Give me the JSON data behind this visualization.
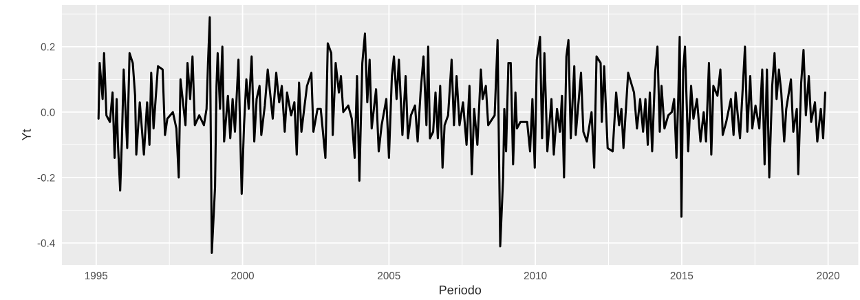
{
  "chart_data": {
    "type": "line",
    "xlabel": "Periodo",
    "ylabel": "Yt",
    "xlim": [
      1993.83,
      2021.03
    ],
    "ylim": [
      -0.467,
      0.328
    ],
    "xticks": [
      1995,
      2000,
      2005,
      2010,
      2015,
      2020,
      {
        "value": 1997.5,
        "label": null
      },
      {
        "value": 2002.5,
        "label": null
      },
      {
        "value": 2007.5,
        "label": null
      },
      {
        "value": 2012.5,
        "label": null
      },
      {
        "value": 2017.5,
        "label": null
      }
    ],
    "yticks": [
      {
        "value": -0.4,
        "label": "-0.4"
      },
      {
        "value": -0.2,
        "label": "-0.2"
      },
      {
        "value": 0.0,
        "label": "0.0"
      },
      {
        "value": 0.2,
        "label": "0.2"
      },
      {
        "value": -0.3,
        "label": null
      },
      {
        "value": -0.1,
        "label": null
      },
      {
        "value": 0.1,
        "label": null
      },
      {
        "value": 0.3,
        "label": null
      }
    ],
    "grid": true,
    "legend": false,
    "series": [
      {
        "color": "#000000",
        "x": [
          1995.08,
          1995.12,
          1995.22,
          1995.27,
          1995.35,
          1995.47,
          1995.56,
          1995.63,
          1995.7,
          1995.74,
          1995.82,
          1995.88,
          1995.94,
          1996.06,
          1996.14,
          1996.25,
          1996.33,
          1996.37,
          1996.49,
          1996.63,
          1996.74,
          1996.82,
          1996.88,
          1996.96,
          1997.11,
          1997.27,
          1997.35,
          1997.43,
          1997.62,
          1997.74,
          1997.82,
          1997.88,
          1998.05,
          1998.12,
          1998.21,
          1998.29,
          1998.37,
          1998.52,
          1998.68,
          1998.77,
          1998.82,
          1998.88,
          1998.95,
          1999.06,
          1999.11,
          1999.15,
          1999.23,
          1999.31,
          1999.37,
          1999.5,
          1999.58,
          1999.66,
          1999.74,
          1999.86,
          1999.97,
          2000.05,
          2000.13,
          2000.21,
          2000.31,
          2000.4,
          2000.48,
          2000.58,
          2000.64,
          2000.76,
          2000.86,
          2001.03,
          2001.15,
          2001.25,
          2001.34,
          2001.44,
          2001.52,
          2001.66,
          2001.77,
          2001.85,
          2001.93,
          2002.01,
          2002.2,
          2002.35,
          2002.42,
          2002.56,
          2002.67,
          2002.83,
          2002.91,
          2003.03,
          2003.08,
          2003.18,
          2003.29,
          2003.36,
          2003.44,
          2003.61,
          2003.73,
          2003.83,
          2003.91,
          2003.99,
          2004.09,
          2004.18,
          2004.26,
          2004.34,
          2004.41,
          2004.56,
          2004.65,
          2004.75,
          2004.91,
          2005.0,
          2005.1,
          2005.17,
          2005.26,
          2005.34,
          2005.46,
          2005.57,
          2005.65,
          2005.75,
          2005.89,
          2005.98,
          2006.08,
          2006.18,
          2006.28,
          2006.34,
          2006.4,
          2006.51,
          2006.59,
          2006.67,
          2006.75,
          2006.83,
          2006.9,
          2007.02,
          2007.14,
          2007.22,
          2007.31,
          2007.41,
          2007.53,
          2007.65,
          2007.75,
          2007.83,
          2007.91,
          2008.02,
          2008.14,
          2008.2,
          2008.31,
          2008.39,
          2008.61,
          2008.71,
          2008.8,
          2008.9,
          2008.94,
          2009.0,
          2009.08,
          2009.16,
          2009.24,
          2009.32,
          2009.37,
          2009.49,
          2009.72,
          2009.82,
          2009.9,
          2009.98,
          2010.05,
          2010.16,
          2010.23,
          2010.31,
          2010.41,
          2010.55,
          2010.63,
          2010.74,
          2010.84,
          2010.91,
          2010.98,
          2011.06,
          2011.13,
          2011.21,
          2011.33,
          2011.38,
          2011.56,
          2011.64,
          2011.76,
          2011.92,
          2012.01,
          2012.09,
          2012.23,
          2012.27,
          2012.35,
          2012.47,
          2012.64,
          2012.76,
          2012.86,
          2012.94,
          2013.01,
          2013.08,
          2013.17,
          2013.37,
          2013.47,
          2013.58,
          2013.68,
          2013.76,
          2013.84,
          2013.91,
          2013.99,
          2014.09,
          2014.17,
          2014.25,
          2014.31,
          2014.41,
          2014.54,
          2014.66,
          2014.74,
          2014.82,
          2014.88,
          2014.93,
          2014.99,
          2015.05,
          2015.11,
          2015.22,
          2015.32,
          2015.4,
          2015.52,
          2015.64,
          2015.75,
          2015.83,
          2015.93,
          2016.01,
          2016.08,
          2016.22,
          2016.32,
          2016.4,
          2016.52,
          2016.68,
          2016.77,
          2016.84,
          2016.99,
          2017.1,
          2017.16,
          2017.24,
          2017.34,
          2017.41,
          2017.52,
          2017.65,
          2017.75,
          2017.83,
          2017.91,
          2017.99,
          2018.09,
          2018.17,
          2018.24,
          2018.32,
          2018.4,
          2018.5,
          2018.57,
          2018.73,
          2018.81,
          2018.93,
          2018.98,
          2019.08,
          2019.16,
          2019.24,
          2019.34,
          2019.42,
          2019.55,
          2019.63,
          2019.75,
          2019.83,
          2019.9
        ],
        "values": [
          -0.02,
          0.15,
          0.04,
          0.18,
          -0.01,
          -0.03,
          0.06,
          -0.14,
          0.04,
          -0.09,
          -0.24,
          -0.08,
          0.13,
          -0.11,
          0.18,
          0.15,
          0.05,
          -0.13,
          0.03,
          -0.13,
          0.03,
          -0.1,
          0.12,
          -0.05,
          0.14,
          0.13,
          -0.07,
          -0.02,
          0.0,
          -0.05,
          -0.2,
          0.1,
          -0.04,
          0.15,
          0.04,
          0.17,
          -0.04,
          -0.01,
          -0.04,
          0.01,
          0.15,
          0.29,
          -0.43,
          -0.23,
          0.08,
          0.18,
          0.01,
          0.2,
          -0.09,
          0.05,
          -0.08,
          0.04,
          -0.06,
          0.16,
          -0.25,
          -0.04,
          0.1,
          0.01,
          0.17,
          -0.09,
          0.04,
          0.08,
          -0.07,
          0.02,
          0.13,
          -0.02,
          0.12,
          0.03,
          0.08,
          -0.06,
          0.06,
          -0.01,
          0.03,
          -0.13,
          0.09,
          -0.06,
          0.08,
          0.12,
          -0.06,
          0.01,
          0.01,
          -0.14,
          0.21,
          0.18,
          -0.07,
          0.15,
          0.06,
          0.11,
          0.0,
          0.02,
          -0.02,
          -0.14,
          0.11,
          -0.21,
          0.15,
          0.24,
          0.03,
          0.16,
          -0.05,
          0.07,
          -0.12,
          -0.04,
          0.04,
          -0.14,
          0.11,
          0.17,
          0.04,
          0.16,
          -0.07,
          0.11,
          -0.08,
          -0.01,
          0.02,
          -0.09,
          0.06,
          0.17,
          -0.04,
          0.2,
          -0.08,
          -0.06,
          0.06,
          -0.08,
          0.08,
          -0.17,
          -0.04,
          -0.01,
          0.16,
          -0.04,
          0.11,
          -0.04,
          0.03,
          -0.1,
          0.08,
          -0.19,
          0.01,
          -0.1,
          0.13,
          0.04,
          0.08,
          -0.04,
          -0.01,
          0.22,
          -0.41,
          -0.2,
          0.01,
          -0.12,
          0.15,
          0.15,
          -0.16,
          0.06,
          -0.05,
          -0.03,
          -0.03,
          -0.12,
          0.04,
          -0.17,
          0.16,
          0.23,
          -0.08,
          0.18,
          -0.12,
          0.04,
          -0.13,
          0.01,
          -0.06,
          0.05,
          -0.2,
          0.17,
          0.22,
          -0.08,
          0.14,
          -0.07,
          0.12,
          -0.06,
          -0.09,
          0.0,
          -0.17,
          0.17,
          0.15,
          -0.03,
          0.14,
          -0.11,
          -0.12,
          0.06,
          -0.04,
          0.01,
          -0.11,
          -0.01,
          0.12,
          0.06,
          -0.05,
          0.04,
          -0.06,
          0.04,
          -0.1,
          0.06,
          -0.12,
          0.12,
          0.2,
          -0.06,
          0.08,
          -0.05,
          -0.01,
          0.0,
          0.04,
          -0.14,
          0.04,
          0.23,
          -0.32,
          0.13,
          0.2,
          -0.12,
          0.08,
          -0.02,
          0.04,
          -0.09,
          0.0,
          -0.09,
          0.15,
          -0.13,
          0.08,
          0.05,
          0.13,
          -0.07,
          -0.03,
          0.04,
          -0.07,
          0.06,
          -0.08,
          0.1,
          0.2,
          -0.06,
          0.11,
          -0.05,
          0.02,
          -0.05,
          0.13,
          -0.16,
          0.13,
          -0.2,
          0.08,
          0.18,
          0.04,
          0.13,
          0.06,
          -0.09,
          0.01,
          0.1,
          -0.06,
          0.01,
          -0.19,
          0.09,
          0.19,
          -0.01,
          0.11,
          -0.03,
          0.03,
          -0.09,
          0.01,
          -0.08,
          0.06
        ]
      }
    ]
  }
}
